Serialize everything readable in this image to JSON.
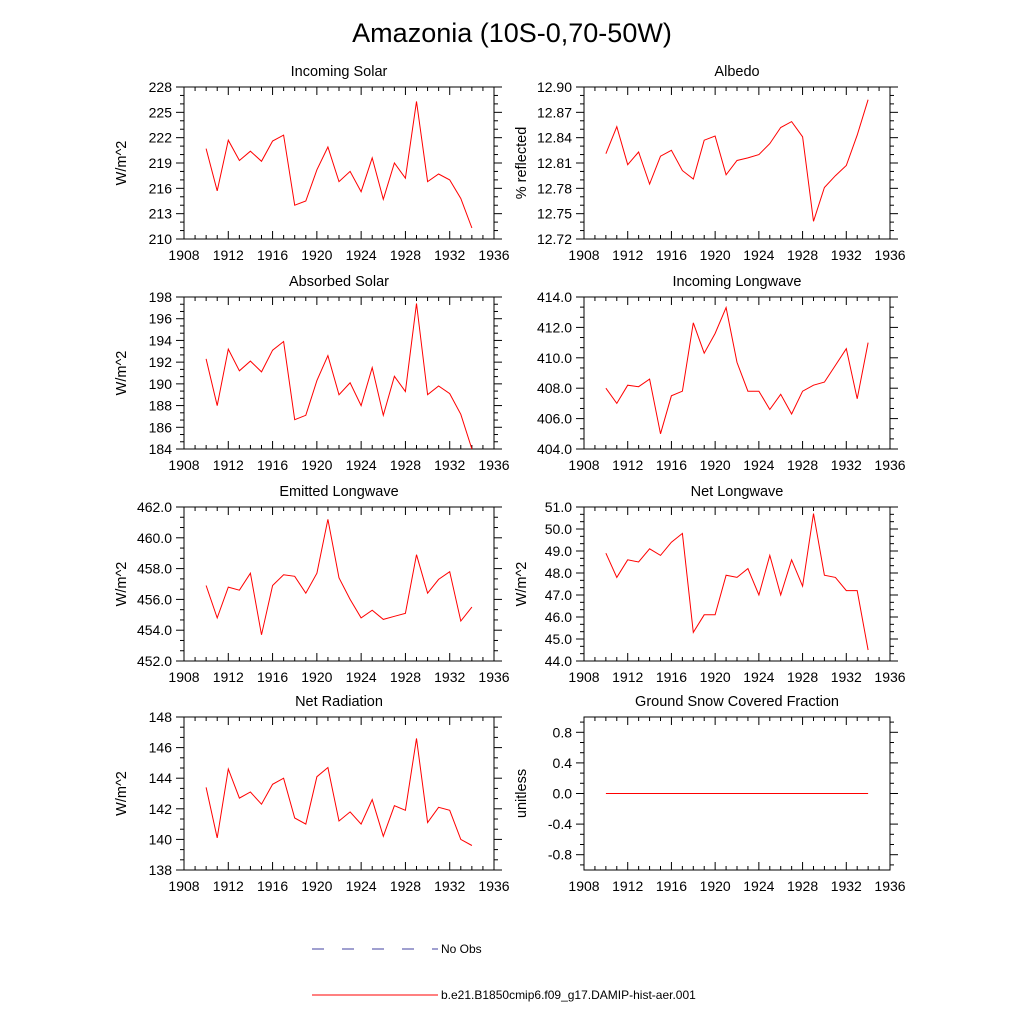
{
  "figure": {
    "title": "Amazonia (10S-0,70-50W)",
    "legend": [
      {
        "label": "No Obs",
        "color": "#4040a0",
        "style": "dashed"
      },
      {
        "label": "b.e21.B1850cmip6.f09_g17.DAMIP-hist-aer.001",
        "color": "#ff0000",
        "style": "solid"
      }
    ]
  },
  "chart_data": [
    {
      "type": "line",
      "title": "Incoming Solar",
      "ylabel": "W/m^2",
      "xlim": [
        1908,
        1936
      ],
      "xticks": [
        1908,
        1912,
        1916,
        1920,
        1924,
        1928,
        1932,
        1936
      ],
      "ylim": [
        210,
        228
      ],
      "yticks": [
        210,
        213,
        216,
        219,
        222,
        225,
        228
      ],
      "ytick_decimals": 0,
      "series": [
        {
          "color": "#ff0000",
          "x": [
            1910,
            1911,
            1912,
            1913,
            1914,
            1915,
            1916,
            1917,
            1918,
            1919,
            1920,
            1921,
            1922,
            1923,
            1924,
            1925,
            1926,
            1927,
            1928,
            1929,
            1930,
            1931,
            1932,
            1933,
            1934
          ],
          "values": [
            220.7,
            215.7,
            221.7,
            219.3,
            220.4,
            219.2,
            221.6,
            222.3,
            214.0,
            214.5,
            218.2,
            220.9,
            216.8,
            218.0,
            215.6,
            219.6,
            214.7,
            219.0,
            217.2,
            226.3,
            216.8,
            217.7,
            217.0,
            214.8,
            211.3
          ]
        }
      ]
    },
    {
      "type": "line",
      "title": "Albedo",
      "ylabel": "% reflected",
      "xlim": [
        1908,
        1936
      ],
      "xticks": [
        1908,
        1912,
        1916,
        1920,
        1924,
        1928,
        1932,
        1936
      ],
      "ylim": [
        12.72,
        12.9
      ],
      "yticks": [
        12.72,
        12.75,
        12.78,
        12.81,
        12.84,
        12.87,
        12.9
      ],
      "ytick_decimals": 2,
      "series": [
        {
          "color": "#ff0000",
          "x": [
            1910,
            1911,
            1912,
            1913,
            1914,
            1915,
            1916,
            1917,
            1918,
            1919,
            1920,
            1921,
            1922,
            1923,
            1924,
            1925,
            1926,
            1927,
            1928,
            1929,
            1930,
            1931,
            1932,
            1933,
            1934
          ],
          "values": [
            12.821,
            12.853,
            12.808,
            12.823,
            12.785,
            12.818,
            12.825,
            12.801,
            12.791,
            12.837,
            12.842,
            12.796,
            12.813,
            12.816,
            12.82,
            12.833,
            12.852,
            12.859,
            12.841,
            12.741,
            12.781,
            12.795,
            12.807,
            12.843,
            12.885
          ]
        }
      ]
    },
    {
      "type": "line",
      "title": "Absorbed Solar",
      "ylabel": "W/m^2",
      "xlim": [
        1908,
        1936
      ],
      "xticks": [
        1908,
        1912,
        1916,
        1920,
        1924,
        1928,
        1932,
        1936
      ],
      "ylim": [
        184,
        198
      ],
      "yticks": [
        184,
        186,
        188,
        190,
        192,
        194,
        196,
        198
      ],
      "ytick_decimals": 0,
      "series": [
        {
          "color": "#ff0000",
          "x": [
            1910,
            1911,
            1912,
            1913,
            1914,
            1915,
            1916,
            1917,
            1918,
            1919,
            1920,
            1921,
            1922,
            1923,
            1924,
            1925,
            1926,
            1927,
            1928,
            1929,
            1930,
            1931,
            1932,
            1933,
            1934
          ],
          "values": [
            192.3,
            188.0,
            193.2,
            191.2,
            192.1,
            191.1,
            193.1,
            193.9,
            186.7,
            187.1,
            190.3,
            192.6,
            189.0,
            190.1,
            188.0,
            191.5,
            187.1,
            190.7,
            189.3,
            197.4,
            189.0,
            189.8,
            189.1,
            187.2,
            184.0
          ]
        }
      ]
    },
    {
      "type": "line",
      "title": "Incoming Longwave",
      "ylabel": "",
      "xlim": [
        1908,
        1936
      ],
      "xticks": [
        1908,
        1912,
        1916,
        1920,
        1924,
        1928,
        1932,
        1936
      ],
      "ylim": [
        404,
        414
      ],
      "yticks": [
        404,
        406,
        408,
        410,
        412,
        414
      ],
      "ytick_decimals": 1,
      "series": [
        {
          "color": "#ff0000",
          "x": [
            1910,
            1911,
            1912,
            1913,
            1914,
            1915,
            1916,
            1917,
            1918,
            1919,
            1920,
            1921,
            1922,
            1923,
            1924,
            1925,
            1926,
            1927,
            1928,
            1929,
            1930,
            1931,
            1932,
            1933,
            1934
          ],
          "values": [
            408.0,
            407.0,
            408.2,
            408.1,
            408.6,
            405.0,
            407.5,
            407.8,
            412.3,
            410.3,
            411.6,
            413.3,
            409.7,
            407.8,
            407.8,
            406.6,
            407.6,
            406.3,
            407.8,
            408.2,
            408.4,
            409.5,
            410.6,
            407.3,
            411.0
          ]
        }
      ]
    },
    {
      "type": "line",
      "title": "Emitted Longwave",
      "ylabel": "W/m^2",
      "xlim": [
        1908,
        1936
      ],
      "xticks": [
        1908,
        1912,
        1916,
        1920,
        1924,
        1928,
        1932,
        1936
      ],
      "ylim": [
        452,
        462
      ],
      "yticks": [
        452,
        454,
        456,
        458,
        460,
        462
      ],
      "ytick_decimals": 1,
      "series": [
        {
          "color": "#ff0000",
          "x": [
            1910,
            1911,
            1912,
            1913,
            1914,
            1915,
            1916,
            1917,
            1918,
            1919,
            1920,
            1921,
            1922,
            1923,
            1924,
            1925,
            1926,
            1927,
            1928,
            1929,
            1930,
            1931,
            1932,
            1933,
            1934
          ],
          "values": [
            456.9,
            454.8,
            456.8,
            456.6,
            457.7,
            453.7,
            456.9,
            457.6,
            457.5,
            456.4,
            457.7,
            461.2,
            457.4,
            456.0,
            454.8,
            455.3,
            454.7,
            454.9,
            455.1,
            458.9,
            456.4,
            457.3,
            457.8,
            454.6,
            455.5
          ]
        }
      ]
    },
    {
      "type": "line",
      "title": "Net Longwave",
      "ylabel": "W/m^2",
      "xlim": [
        1908,
        1936
      ],
      "xticks": [
        1908,
        1912,
        1916,
        1920,
        1924,
        1928,
        1932,
        1936
      ],
      "ylim": [
        44,
        51
      ],
      "yticks": [
        44,
        45,
        46,
        47,
        48,
        49,
        50,
        51
      ],
      "ytick_decimals": 1,
      "series": [
        {
          "color": "#ff0000",
          "x": [
            1910,
            1911,
            1912,
            1913,
            1914,
            1915,
            1916,
            1917,
            1918,
            1919,
            1920,
            1921,
            1922,
            1923,
            1924,
            1925,
            1926,
            1927,
            1928,
            1929,
            1930,
            1931,
            1932,
            1933,
            1934
          ],
          "values": [
            48.9,
            47.8,
            48.6,
            48.5,
            49.1,
            48.8,
            49.4,
            49.8,
            45.3,
            46.1,
            46.1,
            47.9,
            47.8,
            48.2,
            47.0,
            48.8,
            47.0,
            48.6,
            47.4,
            50.7,
            47.9,
            47.8,
            47.2,
            47.2,
            44.5
          ]
        }
      ]
    },
    {
      "type": "line",
      "title": "Net Radiation",
      "ylabel": "W/m^2",
      "xlim": [
        1908,
        1936
      ],
      "xticks": [
        1908,
        1912,
        1916,
        1920,
        1924,
        1928,
        1932,
        1936
      ],
      "ylim": [
        138,
        148
      ],
      "yticks": [
        138,
        140,
        142,
        144,
        146,
        148
      ],
      "ytick_decimals": 0,
      "series": [
        {
          "color": "#ff0000",
          "x": [
            1910,
            1911,
            1912,
            1913,
            1914,
            1915,
            1916,
            1917,
            1918,
            1919,
            1920,
            1921,
            1922,
            1923,
            1924,
            1925,
            1926,
            1927,
            1928,
            1929,
            1930,
            1931,
            1932,
            1933,
            1934
          ],
          "values": [
            143.4,
            140.1,
            144.6,
            142.7,
            143.1,
            142.3,
            143.6,
            144.0,
            141.4,
            141.0,
            144.1,
            144.7,
            141.2,
            141.8,
            141.0,
            142.6,
            140.2,
            142.2,
            141.9,
            146.6,
            141.1,
            142.1,
            141.9,
            140.0,
            139.6
          ]
        }
      ]
    },
    {
      "type": "line",
      "title": "Ground Snow Covered Fraction",
      "ylabel": "unitless",
      "xlim": [
        1908,
        1936
      ],
      "xticks": [
        1908,
        1912,
        1916,
        1920,
        1924,
        1928,
        1932,
        1936
      ],
      "ylim": [
        -1.0,
        1.0
      ],
      "yticks": [
        -0.8,
        -0.4,
        0.0,
        0.4,
        0.8
      ],
      "ytick_decimals": 1,
      "series": [
        {
          "color": "#ff0000",
          "x": [
            1910,
            1911,
            1912,
            1913,
            1914,
            1915,
            1916,
            1917,
            1918,
            1919,
            1920,
            1921,
            1922,
            1923,
            1924,
            1925,
            1926,
            1927,
            1928,
            1929,
            1930,
            1931,
            1932,
            1933,
            1934
          ],
          "values": [
            0,
            0,
            0,
            0,
            0,
            0,
            0,
            0,
            0,
            0,
            0,
            0,
            0,
            0,
            0,
            0,
            0,
            0,
            0,
            0,
            0,
            0,
            0,
            0,
            0
          ]
        }
      ]
    }
  ]
}
